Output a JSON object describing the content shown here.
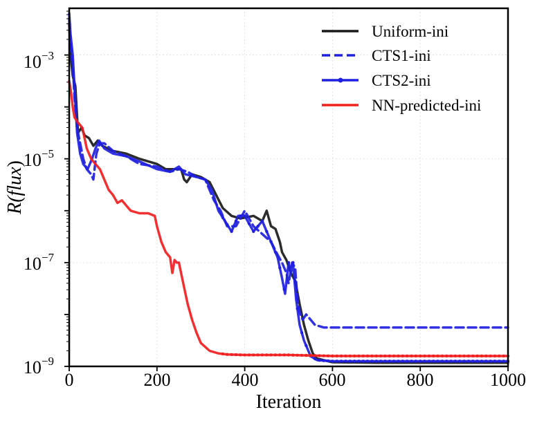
{
  "chart_data": {
    "type": "line",
    "title": "",
    "xlabel": "Iteration",
    "ylabel_main": "R(",
    "ylabel_italic": "flux",
    "ylabel_close": ")",
    "xlim": [
      0,
      1000
    ],
    "ylim_log10": [
      -9,
      -2.1
    ],
    "y_scale": "log",
    "grid": true,
    "legend_position": "top-right",
    "x_ticks": [
      0,
      200,
      400,
      600,
      800,
      1000
    ],
    "x_tick_labels": [
      "0",
      "200",
      "400",
      "600",
      "800",
      "1000"
    ],
    "y_ticks_log10": [
      -9,
      -7,
      -5,
      -3
    ],
    "y_tick_labels": [
      {
        "base": "10",
        "exp": "−9"
      },
      {
        "base": "10",
        "exp": "−7"
      },
      {
        "base": "10",
        "exp": "−5"
      },
      {
        "base": "10",
        "exp": "−3"
      }
    ],
    "series": [
      {
        "name": "Uniform-ini",
        "color": "#1a1a1a",
        "style": "solid",
        "markers": false,
        "points_log10": [
          [
            0,
            -2.4
          ],
          [
            3,
            -3.0
          ],
          [
            8,
            -3.4
          ],
          [
            14,
            -3.6
          ],
          [
            20,
            -4.5
          ],
          [
            28,
            -4.4
          ],
          [
            35,
            -4.55
          ],
          [
            45,
            -4.6
          ],
          [
            55,
            -4.75
          ],
          [
            65,
            -4.65
          ],
          [
            75,
            -4.75
          ],
          [
            100,
            -4.85
          ],
          [
            130,
            -4.9
          ],
          [
            160,
            -5.0
          ],
          [
            200,
            -5.1
          ],
          [
            220,
            -5.2
          ],
          [
            245,
            -5.2
          ],
          [
            255,
            -5.2
          ],
          [
            262,
            -5.4
          ],
          [
            268,
            -5.45
          ],
          [
            280,
            -5.3
          ],
          [
            300,
            -5.35
          ],
          [
            320,
            -5.45
          ],
          [
            335,
            -5.7
          ],
          [
            350,
            -5.95
          ],
          [
            370,
            -6.1
          ],
          [
            390,
            -6.15
          ],
          [
            420,
            -6.1
          ],
          [
            440,
            -6.2
          ],
          [
            450,
            -6.0
          ],
          [
            460,
            -6.3
          ],
          [
            470,
            -6.35
          ],
          [
            480,
            -6.6
          ],
          [
            485,
            -6.8
          ],
          [
            495,
            -6.95
          ],
          [
            505,
            -7.2
          ],
          [
            515,
            -7.35
          ],
          [
            525,
            -7.8
          ],
          [
            535,
            -8.2
          ],
          [
            545,
            -8.5
          ],
          [
            555,
            -8.75
          ],
          [
            565,
            -8.85
          ],
          [
            600,
            -8.92
          ],
          [
            700,
            -8.93
          ],
          [
            800,
            -8.93
          ],
          [
            900,
            -8.93
          ],
          [
            1000,
            -8.93
          ]
        ]
      },
      {
        "name": "CTS1-ini",
        "color": "#1f1fe0",
        "style": "dashed",
        "markers": false,
        "points_log10": [
          [
            0,
            -2.3
          ],
          [
            3,
            -2.8
          ],
          [
            8,
            -3.2
          ],
          [
            12,
            -3.8
          ],
          [
            18,
            -4.4
          ],
          [
            25,
            -4.7
          ],
          [
            32,
            -5.0
          ],
          [
            40,
            -5.2
          ],
          [
            50,
            -5.3
          ],
          [
            55,
            -5.4
          ],
          [
            62,
            -4.9
          ],
          [
            70,
            -4.7
          ],
          [
            80,
            -4.7
          ],
          [
            100,
            -4.85
          ],
          [
            130,
            -4.95
          ],
          [
            160,
            -5.1
          ],
          [
            200,
            -5.15
          ],
          [
            230,
            -5.25
          ],
          [
            250,
            -5.2
          ],
          [
            270,
            -5.25
          ],
          [
            290,
            -5.35
          ],
          [
            310,
            -5.4
          ],
          [
            330,
            -5.8
          ],
          [
            345,
            -6.0
          ],
          [
            360,
            -6.3
          ],
          [
            380,
            -6.3
          ],
          [
            400,
            -6.0
          ],
          [
            420,
            -6.3
          ],
          [
            440,
            -6.45
          ],
          [
            460,
            -6.6
          ],
          [
            475,
            -6.85
          ],
          [
            485,
            -7.0
          ],
          [
            495,
            -7.2
          ],
          [
            500,
            -7.4
          ],
          [
            508,
            -7.0
          ],
          [
            515,
            -7.1
          ],
          [
            520,
            -7.7
          ],
          [
            525,
            -7.95
          ],
          [
            532,
            -8.1
          ],
          [
            540,
            -8.0
          ],
          [
            550,
            -8.1
          ],
          [
            560,
            -8.2
          ],
          [
            580,
            -8.25
          ],
          [
            700,
            -8.25
          ],
          [
            800,
            -8.25
          ],
          [
            900,
            -8.25
          ],
          [
            1000,
            -8.25
          ]
        ]
      },
      {
        "name": "CTS2-ini",
        "color": "#1f1fe0",
        "style": "solid",
        "markers": true,
        "points_log10": [
          [
            0,
            -2.2
          ],
          [
            3,
            -2.6
          ],
          [
            8,
            -3.0
          ],
          [
            12,
            -3.6
          ],
          [
            18,
            -4.5
          ],
          [
            25,
            -4.9
          ],
          [
            32,
            -5.1
          ],
          [
            42,
            -5.2
          ],
          [
            52,
            -5.0
          ],
          [
            60,
            -4.8
          ],
          [
            68,
            -4.65
          ],
          [
            80,
            -4.8
          ],
          [
            100,
            -4.9
          ],
          [
            130,
            -4.95
          ],
          [
            160,
            -5.05
          ],
          [
            200,
            -5.2
          ],
          [
            230,
            -5.25
          ],
          [
            250,
            -5.15
          ],
          [
            265,
            -5.3
          ],
          [
            290,
            -5.35
          ],
          [
            310,
            -5.4
          ],
          [
            325,
            -5.6
          ],
          [
            340,
            -6.0
          ],
          [
            355,
            -6.2
          ],
          [
            370,
            -6.4
          ],
          [
            385,
            -6.1
          ],
          [
            400,
            -6.1
          ],
          [
            420,
            -6.4
          ],
          [
            440,
            -6.2
          ],
          [
            460,
            -6.6
          ],
          [
            475,
            -6.9
          ],
          [
            485,
            -7.3
          ],
          [
            492,
            -7.6
          ],
          [
            500,
            -7.0
          ],
          [
            505,
            -7.2
          ],
          [
            510,
            -7.0
          ],
          [
            517,
            -7.7
          ],
          [
            525,
            -8.2
          ],
          [
            535,
            -8.5
          ],
          [
            550,
            -8.8
          ],
          [
            565,
            -8.88
          ],
          [
            600,
            -8.9
          ],
          [
            700,
            -8.9
          ],
          [
            800,
            -8.9
          ],
          [
            900,
            -8.9
          ],
          [
            1000,
            -8.9
          ]
        ]
      },
      {
        "name": "NN-predicted-ini",
        "color": "#f02020",
        "style": "solid",
        "markers": true,
        "points_log10": [
          [
            0,
            -3.5
          ],
          [
            4,
            -3.7
          ],
          [
            8,
            -4.0
          ],
          [
            12,
            -4.2
          ],
          [
            20,
            -4.3
          ],
          [
            30,
            -4.4
          ],
          [
            40,
            -4.8
          ],
          [
            50,
            -5.0
          ],
          [
            60,
            -5.1
          ],
          [
            70,
            -5.2
          ],
          [
            80,
            -5.4
          ],
          [
            90,
            -5.6
          ],
          [
            100,
            -5.7
          ],
          [
            110,
            -5.85
          ],
          [
            120,
            -5.8
          ],
          [
            130,
            -5.9
          ],
          [
            140,
            -6.0
          ],
          [
            160,
            -6.05
          ],
          [
            180,
            -6.05
          ],
          [
            195,
            -6.1
          ],
          [
            200,
            -6.3
          ],
          [
            210,
            -6.6
          ],
          [
            220,
            -6.8
          ],
          [
            230,
            -6.9
          ],
          [
            235,
            -7.2
          ],
          [
            240,
            -6.95
          ],
          [
            245,
            -7.0
          ],
          [
            250,
            -7.0
          ],
          [
            260,
            -7.4
          ],
          [
            270,
            -7.8
          ],
          [
            280,
            -8.1
          ],
          [
            290,
            -8.35
          ],
          [
            300,
            -8.55
          ],
          [
            320,
            -8.7
          ],
          [
            340,
            -8.75
          ],
          [
            360,
            -8.77
          ],
          [
            400,
            -8.78
          ],
          [
            500,
            -8.78
          ],
          [
            600,
            -8.8
          ],
          [
            700,
            -8.8
          ],
          [
            800,
            -8.8
          ],
          [
            900,
            -8.8
          ],
          [
            1000,
            -8.8
          ]
        ]
      }
    ]
  }
}
